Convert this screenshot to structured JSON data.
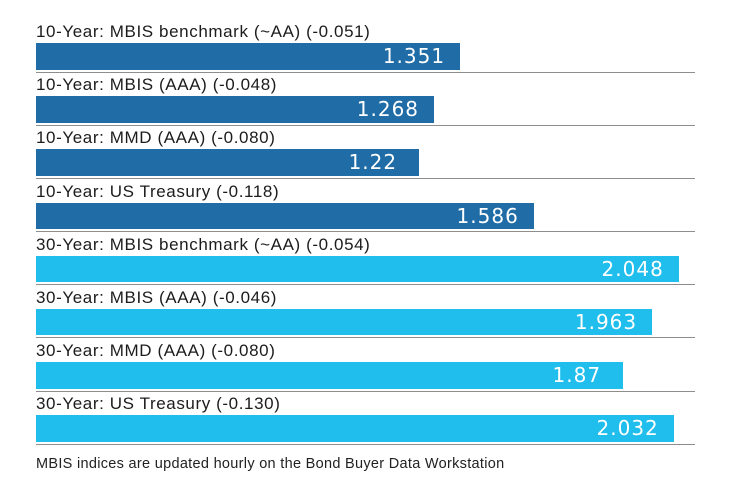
{
  "chart_data": {
    "type": "bar",
    "orientation": "horizontal",
    "title": "",
    "xlabel": "",
    "ylabel": "",
    "xlim": [
      0,
      2.1
    ],
    "grid": false,
    "legend_position": "none",
    "categories": [
      "10-Year: MBIS benchmark (~AA) (-0.051)",
      "10-Year: MBIS (AAA) (-0.048)",
      "10-Year: MMD (AAA) (-0.080)",
      "10-Year: US Treasury (-0.118)",
      "30-Year: MBIS benchmark (~AA) (-0.054)",
      "30-Year: MBIS (AAA) (-0.046)",
      "30-Year: MMD (AAA) (-0.080)",
      "30-Year: US Treasury (-0.130)"
    ],
    "values": [
      1.351,
      1.268,
      1.22,
      1.586,
      2.048,
      1.963,
      1.87,
      2.032
    ],
    "value_labels": [
      "1.351",
      "1.268",
      "1.22",
      "1.586",
      "2.048",
      "1.963",
      "1.87",
      "2.032"
    ],
    "bar_colors": [
      "#1f6ca6",
      "#1f6ca6",
      "#1f6ca6",
      "#1f6ca6",
      "#1fbeec",
      "#1fbeec",
      "#1fbeec",
      "#1fbeec"
    ],
    "group_colors": {
      "ten_year": "#1f6ca6",
      "thirty_year": "#1fbeec"
    },
    "value_label_color": "#ffffff",
    "separator_color": "#8e8e8e",
    "footnote": "MBIS indices are updated hourly on the Bond Buyer Data Workstation"
  }
}
